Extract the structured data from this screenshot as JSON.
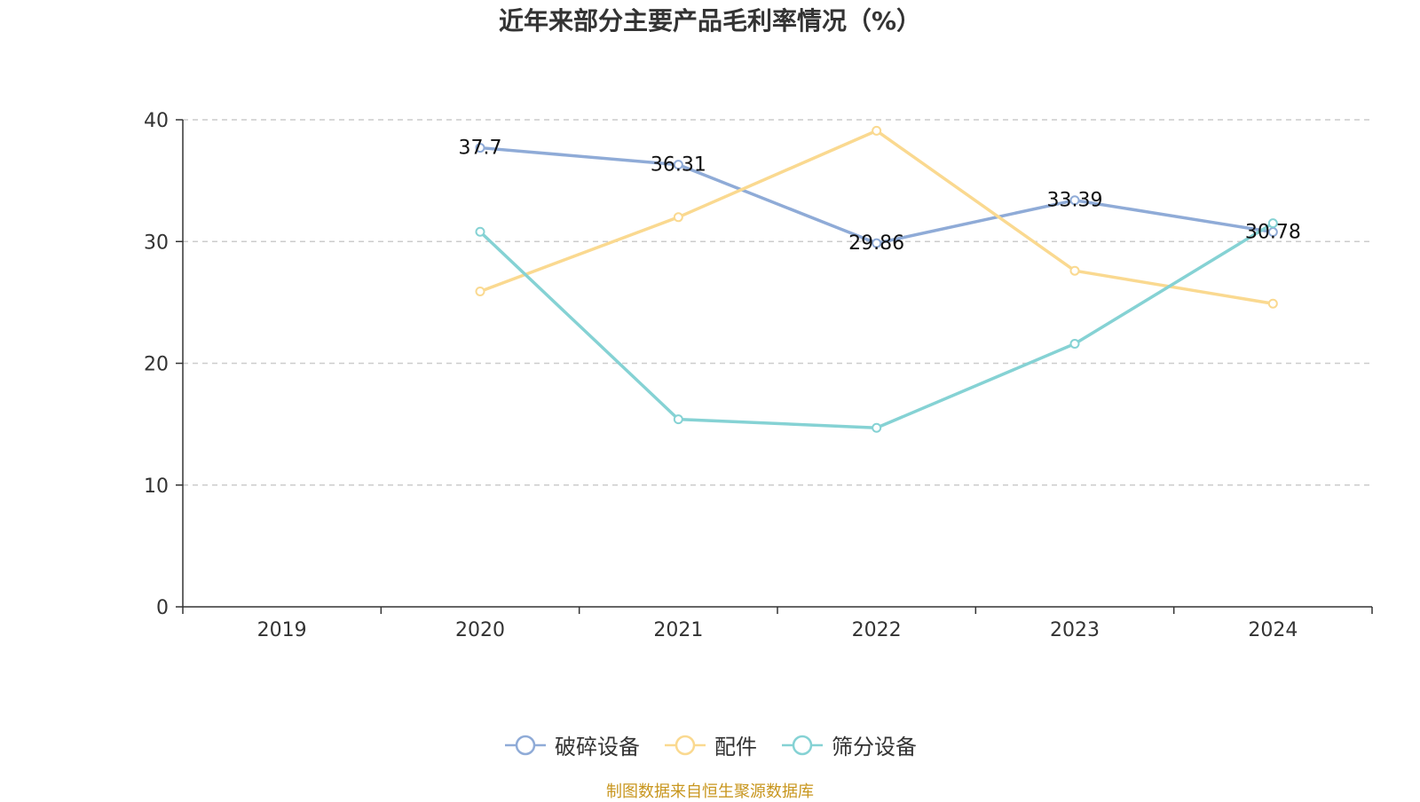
{
  "chart_data": {
    "type": "line",
    "title": "近年来部分主要产品毛利率情况（%）",
    "categories": [
      "2019",
      "2020",
      "2021",
      "2022",
      "2023",
      "2024"
    ],
    "ylim": [
      0,
      40
    ],
    "yticks": [
      0,
      10,
      20,
      30,
      40
    ],
    "grid": "dashed horizontal",
    "legend_position": "bottom-center",
    "series": [
      {
        "name": "破碎设备",
        "color": "#8fabd7",
        "values": [
          null,
          37.7,
          36.31,
          29.86,
          33.39,
          30.78
        ],
        "labels": [
          "",
          "37.7",
          "36.31",
          "29.86",
          "33.39",
          "30.78"
        ]
      },
      {
        "name": "配件",
        "color": "#fad990",
        "values": [
          null,
          25.9,
          32.0,
          39.1,
          27.6,
          24.9
        ],
        "labels": []
      },
      {
        "name": "筛分设备",
        "color": "#85d2d4",
        "values": [
          null,
          30.8,
          15.4,
          14.7,
          21.6,
          31.5
        ],
        "labels": []
      }
    ]
  },
  "footer": {
    "source": "制图数据来自恒生聚源数据库"
  }
}
